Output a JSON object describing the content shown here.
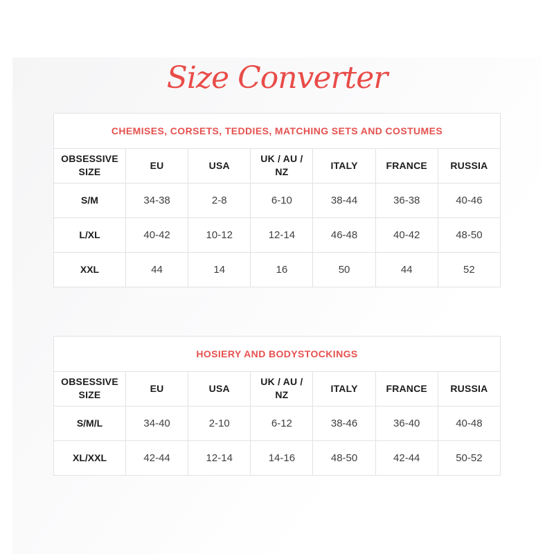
{
  "page": {
    "title": "Size Converter"
  },
  "colors": {
    "accent_red": "#e5514f",
    "title_red": "#e94c48",
    "table_border": "#e2e2e2",
    "header_text": "#1c1c1c",
    "cell_text": "#3f3f3f",
    "panel_background": "#f5f5f6"
  },
  "tables": [
    {
      "title": "CHEMISES, CORSETS, TEDDIES, MATCHING SETS AND COSTUMES",
      "columns": [
        "OBSESSIVE SIZE",
        "EU",
        "USA",
        "UK / AU / NZ",
        "ITALY",
        "FRANCE",
        "RUSSIA"
      ],
      "rows": [
        {
          "size": "S/M",
          "values": [
            "34-38",
            "2-8",
            "6-10",
            "38-44",
            "36-38",
            "40-46"
          ]
        },
        {
          "size": "L/XL",
          "values": [
            "40-42",
            "10-12",
            "12-14",
            "46-48",
            "40-42",
            "48-50"
          ]
        },
        {
          "size": "XXL",
          "values": [
            "44",
            "14",
            "16",
            "50",
            "44",
            "52"
          ]
        }
      ]
    },
    {
      "title": "HOSIERY AND BODYSTOCKINGS",
      "columns": [
        "OBSESSIVE SIZE",
        "EU",
        "USA",
        "UK / AU / NZ",
        "ITALY",
        "FRANCE",
        "RUSSIA"
      ],
      "rows": [
        {
          "size": "S/M/L",
          "values": [
            "34-40",
            "2-10",
            "6-12",
            "38-46",
            "36-40",
            "40-48"
          ]
        },
        {
          "size": "XL/XXL",
          "values": [
            "42-44",
            "12-14",
            "14-16",
            "48-50",
            "42-44",
            "50-52"
          ]
        }
      ]
    }
  ]
}
